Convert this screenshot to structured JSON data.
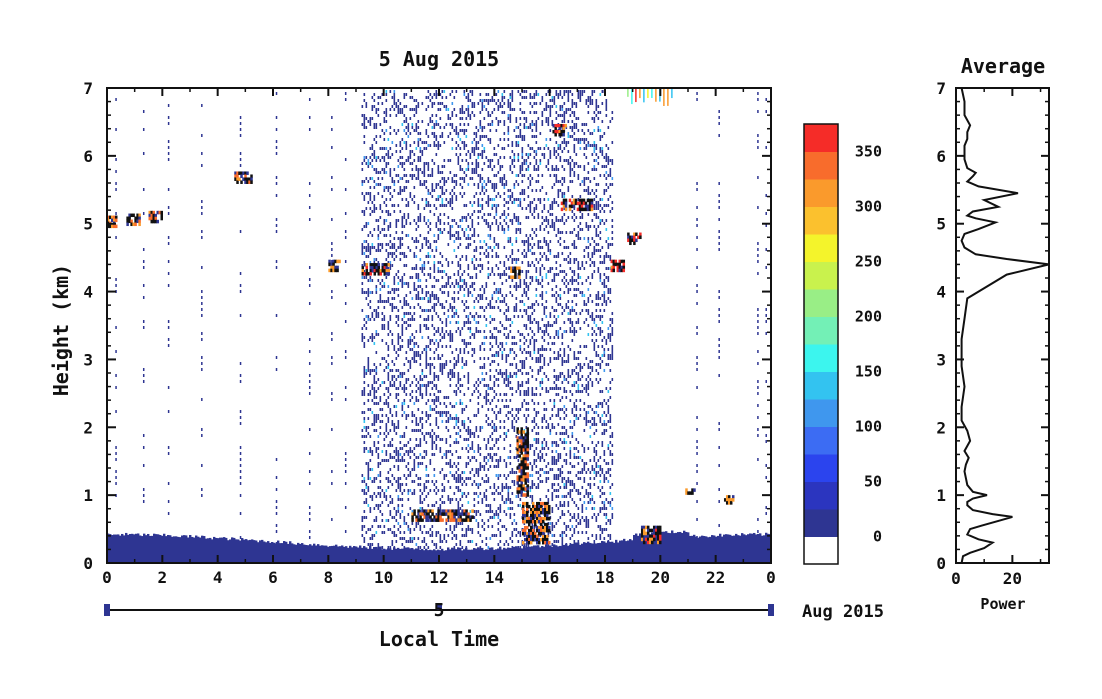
{
  "chart_data": [
    {
      "type": "heatmap",
      "title": "5 Aug 2015",
      "xlabel": "Local Time",
      "ylabel": "Height (km)",
      "xlim": [
        0,
        24
      ],
      "ylim": [
        0,
        7
      ],
      "x_ticks": [
        "0",
        "2",
        "4",
        "6",
        "8",
        "10",
        "12",
        "14",
        "16",
        "18",
        "20",
        "22",
        "0"
      ],
      "y_ticks": [
        "0",
        "1",
        "2",
        "3",
        "4",
        "5",
        "6",
        "7"
      ],
      "date_axis": {
        "day": "5",
        "month_year": "Aug 2015"
      },
      "colorbar": {
        "ticks": [
          "0",
          "50",
          "100",
          "150",
          "200",
          "250",
          "300",
          "350"
        ],
        "range": [
          -25,
          375
        ],
        "colors": [
          "#ffffff",
          "#2e3592",
          "#2b35bf",
          "#2b44ee",
          "#3c6cf3",
          "#3f97ee",
          "#33c3f0",
          "#3cf5ee",
          "#73f0b6",
          "#99ee86",
          "#c9f24d",
          "#f4f42b",
          "#fbc12e",
          "#fa9a2c",
          "#f86c2c",
          "#f52c28"
        ]
      },
      "features": [
        {
          "kind": "ground_clutter",
          "x": [
            0,
            24
          ],
          "top_km": [
            0.18,
            0.45
          ],
          "value": 0
        },
        {
          "kind": "noisy_region",
          "x": [
            9.2,
            18.3
          ],
          "y": [
            0,
            7
          ],
          "density": "high"
        },
        {
          "kind": "echo_layer",
          "x": [
            0,
            0.3
          ],
          "y_km": 5.05,
          "peak": 330
        },
        {
          "kind": "echo_layer",
          "x": [
            0.7,
            1.2
          ],
          "y_km": 5.08,
          "peak": 330
        },
        {
          "kind": "echo_layer",
          "x": [
            1.5,
            2.0
          ],
          "y_km": 5.12,
          "peak": 330
        },
        {
          "kind": "echo_layer",
          "x": [
            4.6,
            5.2
          ],
          "y_km": 5.7,
          "peak": 330
        },
        {
          "kind": "echo_layer",
          "x": [
            8.0,
            8.4
          ],
          "y_km": 4.4,
          "peak": 300
        },
        {
          "kind": "echo_layer",
          "x": [
            9.2,
            10.2
          ],
          "y_km": 4.35,
          "peak": 350
        },
        {
          "kind": "echo_layer",
          "x": [
            14.5,
            14.9
          ],
          "y_km": 4.3,
          "peak": 300
        },
        {
          "kind": "echo_layer",
          "x": [
            16.4,
            17.5
          ],
          "y_km": 5.3,
          "peak": 350
        },
        {
          "kind": "echo_layer",
          "x": [
            18.2,
            18.7
          ],
          "y_km": 4.4,
          "peak": 350
        },
        {
          "kind": "echo_layer",
          "x": [
            18.8,
            19.3
          ],
          "y_km": 4.8,
          "peak": 350
        },
        {
          "kind": "echo_layer",
          "x": [
            16.1,
            16.6
          ],
          "y_km": 6.4,
          "peak": 350
        },
        {
          "kind": "echo_layer",
          "x": [
            11.0,
            13.2
          ],
          "y_km": 0.72,
          "peak": 330
        },
        {
          "kind": "echo_column",
          "x": [
            14.8,
            15.2
          ],
          "y": [
            1.0,
            2.0
          ],
          "peak": 330
        },
        {
          "kind": "echo_column",
          "x": [
            15.0,
            16.0
          ],
          "y": [
            0.3,
            0.9
          ],
          "peak": 330
        },
        {
          "kind": "echo_blob",
          "x": [
            19.3,
            20.0
          ],
          "y": [
            0.3,
            0.55
          ],
          "peak": 350
        },
        {
          "kind": "echo_blob",
          "x": [
            20.9,
            21.2
          ],
          "y": [
            1.02,
            1.1
          ],
          "peak": 300
        },
        {
          "kind": "echo_blob",
          "x": [
            22.3,
            22.6
          ],
          "y": [
            0.9,
            1.0
          ],
          "peak": 300
        },
        {
          "kind": "colored_streaks",
          "x": [
            18.8,
            20.5
          ],
          "y": [
            6.7,
            7.0
          ],
          "peak": 250
        }
      ]
    },
    {
      "type": "line",
      "title": "Average",
      "xlabel": "Power",
      "ylabel": "",
      "xlim": [
        0,
        33
      ],
      "ylim": [
        0,
        7
      ],
      "x_ticks": [
        "0",
        "20"
      ],
      "y_ticks": [
        "0",
        "1",
        "2",
        "3",
        "4",
        "5",
        "6",
        "7"
      ],
      "series": [
        {
          "x": [
            2,
            2.5,
            5,
            10,
            13,
            8,
            4,
            5,
            9,
            15,
            20,
            13,
            6,
            4,
            4,
            6,
            11,
            6,
            4,
            3.5,
            3,
            3.5,
            4.5,
            3,
            5,
            4,
            2,
            2,
            3,
            2,
            2,
            3,
            4,
            18,
            33,
            18,
            7,
            3,
            2,
            3,
            8,
            14,
            7,
            4,
            6,
            15,
            10,
            22,
            8,
            4,
            6,
            7,
            4,
            3,
            3,
            3,
            4,
            4,
            5,
            3,
            3,
            2
          ],
          "y": [
            0,
            0.1,
            0.15,
            0.22,
            0.3,
            0.35,
            0.42,
            0.5,
            0.55,
            0.62,
            0.68,
            0.72,
            0.78,
            0.85,
            0.9,
            0.95,
            1.0,
            1.05,
            1.15,
            1.25,
            1.35,
            1.45,
            1.55,
            1.65,
            1.8,
            1.95,
            2.1,
            2.3,
            2.6,
            2.9,
            3.3,
            3.6,
            3.9,
            4.25,
            4.4,
            4.48,
            4.55,
            4.65,
            4.75,
            4.85,
            4.92,
            5.02,
            5.08,
            5.12,
            5.18,
            5.25,
            5.35,
            5.45,
            5.55,
            5.62,
            5.7,
            5.75,
            5.82,
            5.95,
            6.05,
            6.15,
            6.25,
            6.35,
            6.45,
            6.6,
            6.8,
            7.0
          ]
        }
      ]
    }
  ]
}
